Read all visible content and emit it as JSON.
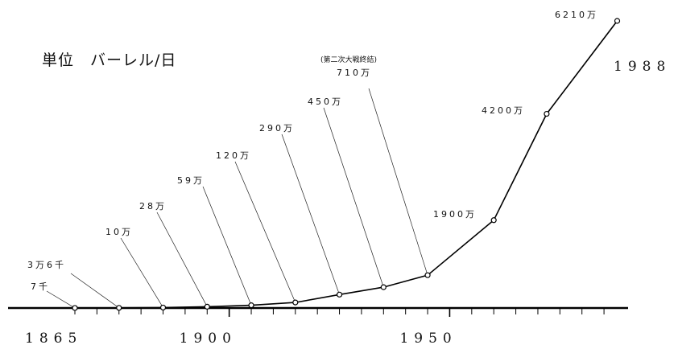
{
  "unit_label": "単位　バーレル/日",
  "chart_data": {
    "type": "line",
    "series": [
      {
        "values": [
          {
            "x": 1865,
            "y": 7000
          },
          {
            "x": 1875,
            "y": 36000
          },
          {
            "x": 1885,
            "y": 100000
          },
          {
            "x": 1895,
            "y": 280000
          },
          {
            "x": 1905,
            "y": 590000
          },
          {
            "x": 1915,
            "y": 1200000
          },
          {
            "x": 1925,
            "y": 2900000
          },
          {
            "x": 1935,
            "y": 4500000
          },
          {
            "x": 1945,
            "y": 7100000
          },
          {
            "x": 1960,
            "y": 19000000
          },
          {
            "x": 1972,
            "y": 42000000
          },
          {
            "x": 1988,
            "y": 62100000
          }
        ]
      }
    ],
    "labels": [
      {
        "x": 1865,
        "text": "7千"
      },
      {
        "x": 1875,
        "text": "3万6千"
      },
      {
        "x": 1885,
        "text": "10万"
      },
      {
        "x": 1895,
        "text": "28万"
      },
      {
        "x": 1905,
        "text": "59万"
      },
      {
        "x": 1915,
        "text": "120万"
      },
      {
        "x": 1925,
        "text": "290万"
      },
      {
        "x": 1935,
        "text": "450万"
      },
      {
        "x": 1945,
        "text": "710万",
        "note": "(第二次大戦終結)"
      },
      {
        "x": 1960,
        "text": "1900万"
      },
      {
        "x": 1972,
        "text": "4200万"
      },
      {
        "x": 1988,
        "text": "6210万"
      }
    ],
    "x_tick_labels": [
      {
        "x": 1865,
        "text": "1865"
      },
      {
        "x": 1900,
        "text": "1900"
      },
      {
        "x": 1950,
        "text": "1950"
      }
    ],
    "end_year_label": "1988",
    "xlim": [
      1865,
      1989
    ],
    "ylim": [
      0,
      62100000
    ],
    "x_tick_step": 5,
    "grid": false
  }
}
